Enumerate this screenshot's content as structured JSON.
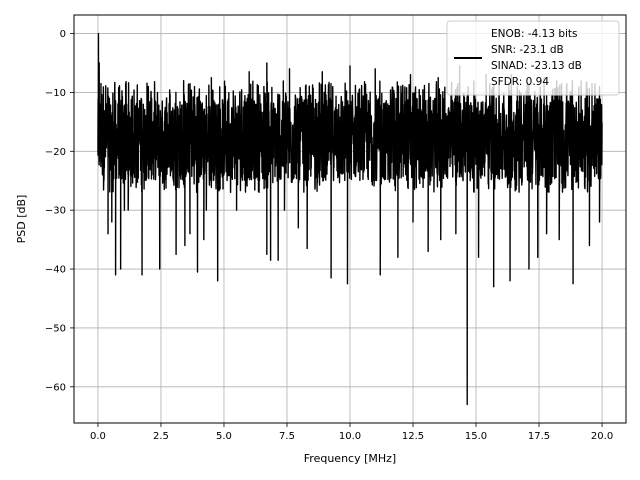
{
  "chart_data": {
    "type": "line",
    "xlabel": "Frequency [MHz]",
    "ylabel": "PSD [dB]",
    "xlim": [
      -0.95,
      20.95
    ],
    "ylim": [
      -66.15,
      3.15
    ],
    "xticks": [
      0.0,
      2.5,
      5.0,
      7.5,
      10.0,
      12.5,
      15.0,
      17.5,
      20.0
    ],
    "xtick_labels": [
      "0.0",
      "2.5",
      "5.0",
      "7.5",
      "10.0",
      "12.5",
      "15.0",
      "17.5",
      "20.0"
    ],
    "yticks": [
      0,
      -10,
      -20,
      -30,
      -40,
      -50,
      -60
    ],
    "ytick_labels": [
      "0",
      "−10",
      "−20",
      "−30",
      "−40",
      "−50",
      "−60"
    ],
    "grid": true,
    "legend_position": "top-right",
    "legend_lines": [
      "ENOB: -4.13 bits",
      "SNR: -23.1 dB",
      "SINAD: -23.13 dB",
      "SFDR: 0.94"
    ],
    "series": [
      {
        "color": "#000000",
        "x_range": [
          0.0,
          20.0
        ],
        "noise_band_db": [
          -27,
          -8
        ],
        "typical_db": -18,
        "points": [
          [
            0.0,
            -17.0
          ],
          [
            0.02,
            0.0
          ],
          [
            0.05,
            -5.0
          ],
          [
            0.08,
            -12.0
          ],
          [
            0.12,
            -8.5
          ],
          [
            0.18,
            -24.0
          ],
          [
            0.3,
            -18.0
          ],
          [
            0.4,
            -34.0
          ],
          [
            0.55,
            -32.0
          ],
          [
            0.7,
            -41.0
          ],
          [
            0.85,
            -24.0
          ],
          [
            0.9,
            -40.0
          ],
          [
            1.05,
            -30.0
          ],
          [
            1.2,
            -30.0
          ],
          [
            1.75,
            -41.0
          ],
          [
            2.45,
            -40.0
          ],
          [
            3.1,
            -37.5
          ],
          [
            3.45,
            -36.0
          ],
          [
            3.65,
            -34.0
          ],
          [
            3.95,
            -40.5
          ],
          [
            4.2,
            -35.0
          ],
          [
            4.3,
            -30.0
          ],
          [
            4.75,
            -42.0
          ],
          [
            5.5,
            -30.0
          ],
          [
            6.7,
            -37.5
          ],
          [
            6.85,
            -38.5
          ],
          [
            7.15,
            -38.5
          ],
          [
            7.4,
            -30.0
          ],
          [
            7.95,
            -33.0
          ],
          [
            8.3,
            -36.5
          ],
          [
            9.25,
            -41.5
          ],
          [
            9.9,
            -42.5
          ],
          [
            11.2,
            -41.0
          ],
          [
            11.9,
            -38.0
          ],
          [
            12.5,
            -32.0
          ],
          [
            13.1,
            -37.0
          ],
          [
            13.6,
            -35.0
          ],
          [
            14.2,
            -34.0
          ],
          [
            14.65,
            -63.0
          ],
          [
            15.1,
            -38.0
          ],
          [
            15.7,
            -43.0
          ],
          [
            16.35,
            -42.0
          ],
          [
            17.1,
            -40.0
          ],
          [
            17.45,
            -38.0
          ],
          [
            17.8,
            -34.0
          ],
          [
            18.3,
            -35.0
          ],
          [
            18.85,
            -42.5
          ],
          [
            19.5,
            -36.0
          ],
          [
            19.9,
            -32.0
          ],
          [
            1.1,
            -8.5
          ],
          [
            2.0,
            -9.0
          ],
          [
            3.4,
            -8.0
          ],
          [
            4.5,
            -7.5
          ],
          [
            6.0,
            -6.5
          ],
          [
            6.7,
            -5.0
          ],
          [
            7.6,
            -6.0
          ],
          [
            8.9,
            -6.5
          ],
          [
            10.0,
            -5.5
          ],
          [
            11.0,
            -6.0
          ],
          [
            12.4,
            -7.0
          ],
          [
            13.5,
            -7.5
          ],
          [
            14.35,
            -5.5
          ],
          [
            15.4,
            -7.0
          ],
          [
            16.4,
            -7.0
          ],
          [
            17.7,
            -7.5
          ],
          [
            18.6,
            -8.5
          ],
          [
            19.6,
            -8.5
          ]
        ]
      }
    ]
  }
}
